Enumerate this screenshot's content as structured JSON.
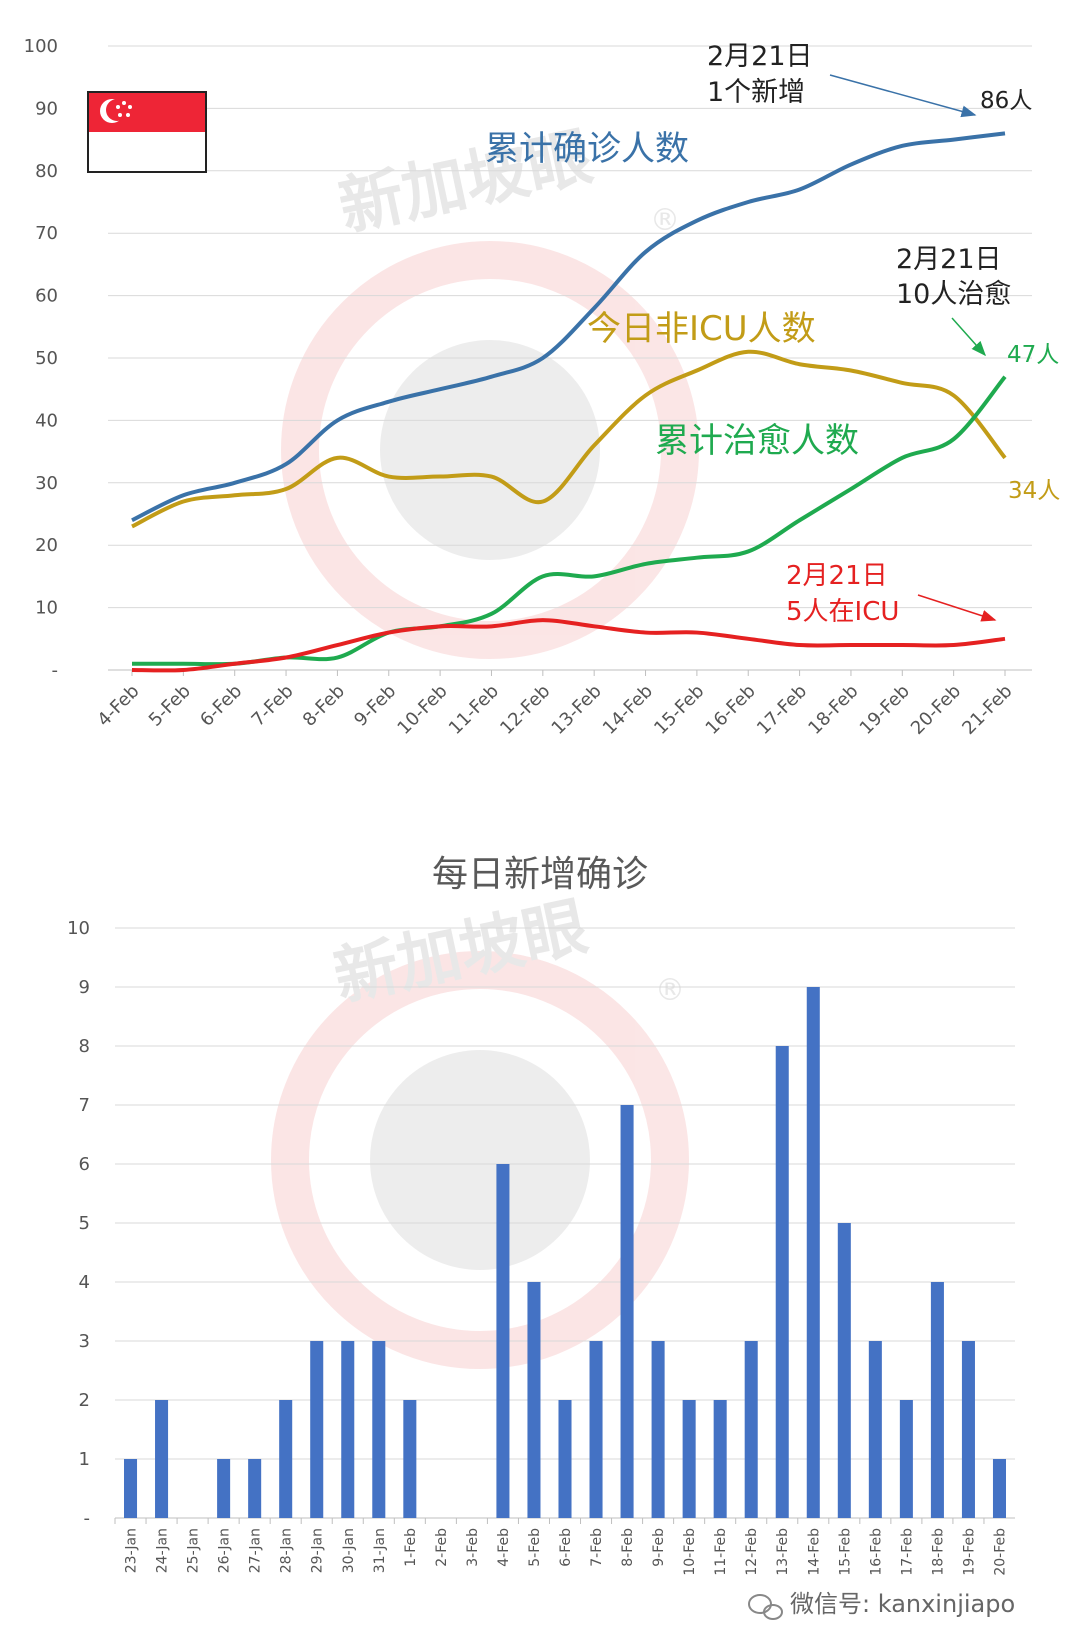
{
  "chart_data": [
    {
      "type": "line",
      "categories": [
        "4-Feb",
        "5-Feb",
        "6-Feb",
        "7-Feb",
        "8-Feb",
        "9-Feb",
        "10-Feb",
        "11-Feb",
        "12-Feb",
        "13-Feb",
        "14-Feb",
        "15-Feb",
        "16-Feb",
        "17-Feb",
        "18-Feb",
        "19-Feb",
        "20-Feb",
        "21-Feb"
      ],
      "y_ticks": [
        "-",
        "10",
        "20",
        "30",
        "40",
        "50",
        "60",
        "70",
        "80",
        "90",
        "100"
      ],
      "ylim": [
        0,
        100
      ],
      "grid": true,
      "series": [
        {
          "name": "累计确诊人数",
          "color": "#3a72a8",
          "values": [
            24,
            28,
            30,
            33,
            40,
            43,
            45,
            47,
            50,
            58,
            67,
            72,
            75,
            77,
            81,
            84,
            85,
            86
          ]
        },
        {
          "name": "今日非ICU人数",
          "color": "#c29c17",
          "values": [
            23,
            27,
            28,
            29,
            34,
            31,
            31,
            31,
            27,
            36,
            44,
            48,
            51,
            49,
            48,
            46,
            44,
            34
          ]
        },
        {
          "name": "累计治愈人数",
          "color": "#1faa4f",
          "values": [
            1,
            1,
            1,
            2,
            2,
            6,
            7,
            9,
            15,
            15,
            17,
            18,
            19,
            24,
            29,
            34,
            37,
            47
          ]
        },
        {
          "name": "",
          "color": "#e52121",
          "values": [
            0,
            0,
            1,
            2,
            4,
            6,
            7,
            7,
            8,
            7,
            6,
            6,
            5,
            4,
            4,
            4,
            4,
            5
          ]
        }
      ],
      "annotations": [
        {
          "key": "a1",
          "text_line1": "2月21日",
          "text_line2": "1个新增",
          "color": "#222222"
        },
        {
          "key": "a2",
          "text": "86人",
          "color": "#222222"
        },
        {
          "key": "a3",
          "text_line1": "2月21日",
          "text_line2": "10人治愈",
          "color": "#222222"
        },
        {
          "key": "a4",
          "text": "47人",
          "color": "#1faa4f"
        },
        {
          "key": "a5",
          "text": "34人",
          "color": "#c29c17"
        },
        {
          "key": "a6",
          "text_line1": "2月21日",
          "text_line2": "5人在ICU",
          "color": "#e52121"
        }
      ]
    },
    {
      "type": "bar",
      "title": "每日新增确诊",
      "categories": [
        "23-Jan",
        "24-Jan",
        "25-Jan",
        "26-Jan",
        "27-Jan",
        "28-Jan",
        "29-Jan",
        "30-Jan",
        "31-Jan",
        "1-Feb",
        "2-Feb",
        "3-Feb",
        "4-Feb",
        "5-Feb",
        "6-Feb",
        "7-Feb",
        "8-Feb",
        "9-Feb",
        "10-Feb",
        "11-Feb",
        "12-Feb",
        "13-Feb",
        "14-Feb",
        "15-Feb",
        "16-Feb",
        "17-Feb",
        "18-Feb",
        "19-Feb",
        "20-Feb"
      ],
      "values": [
        1,
        2,
        0,
        1,
        1,
        2,
        3,
        3,
        3,
        2,
        0,
        0,
        6,
        4,
        2,
        3,
        7,
        3,
        2,
        2,
        3,
        8,
        9,
        5,
        3,
        2,
        4,
        3,
        1
      ],
      "y_ticks": [
        "-",
        "1",
        "2",
        "3",
        "4",
        "5",
        "6",
        "7",
        "8",
        "9",
        "10"
      ],
      "ylim": [
        0,
        10
      ],
      "color": "#4472c4",
      "grid": true
    }
  ],
  "flag": {
    "name": "singapore-flag",
    "red": "#ee2536",
    "white": "#ffffff"
  },
  "watermark": {
    "text": "新加坡眼",
    "mark": "®"
  },
  "footer": {
    "icon": "wechat-icon",
    "text": "微信号: kanxinjiapo"
  }
}
